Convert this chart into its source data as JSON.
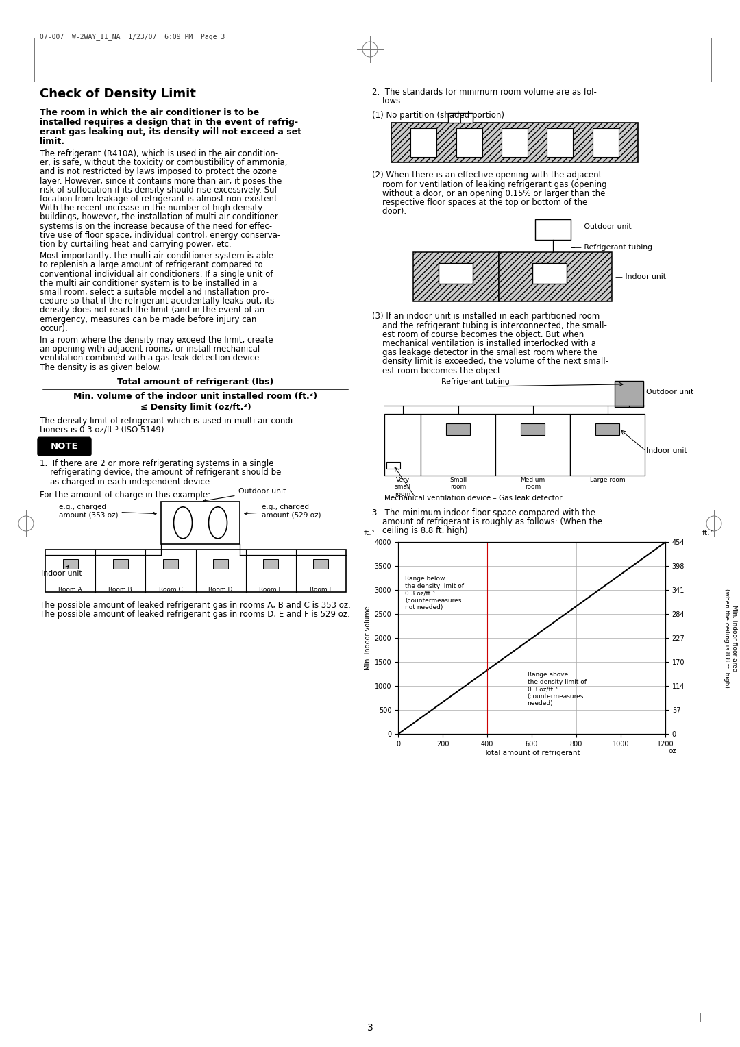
{
  "page_header": "07-007  W-2WAY_II_NA  1/23/07  6:09 PM  Page 3",
  "title": "Check of Density Limit",
  "lines_bold": [
    "The room in which the air conditioner is to be",
    "installed requires a design that in the event of refrig-",
    "erant gas leaking out, its density will not exceed a set",
    "limit."
  ],
  "para1_lines": [
    "The refrigerant (R410A), which is used in the air condition-",
    "er, is safe, without the toxicity or combustibility of ammonia,",
    "and is not restricted by laws imposed to protect the ozone",
    "layer. However, since it contains more than air, it poses the",
    "risk of suffocation if its density should rise excessively. Suf-",
    "focation from leakage of refrigerant is almost non-existent.",
    "With the recent increase in the number of high density",
    "buildings, however, the installation of multi air conditioner",
    "systems is on the increase because of the need for effec-",
    "tive use of floor space, individual control, energy conserva-",
    "tion by curtailing heat and carrying power, etc."
  ],
  "para2_lines": [
    "Most importantly, the multi air conditioner system is able",
    "to replenish a large amount of refrigerant compared to",
    "conventional individual air conditioners. If a single unit of",
    "the multi air conditioner system is to be installed in a",
    "small room, select a suitable model and installation pro-",
    "cedure so that if the refrigerant accidentally leaks out, its",
    "density does not reach the limit (and in the event of an",
    "emergency, measures can be made before injury can",
    "occur)."
  ],
  "para3_lines": [
    "In a room where the density may exceed the limit, create",
    "an opening with adjacent rooms, or install mechanical",
    "ventilation combined with a gas leak detection device.",
    "The density is as given below."
  ],
  "formula_line1": "Total amount of refrigerant (lbs)",
  "formula_line2": "Min. volume of the indoor unit installed room (ft.³)",
  "formula_line3": "≤ Density limit (oz/ft.³)",
  "density_lines": [
    "The density limit of refrigerant which is used in multi air condi-",
    "tioners is 0.3 oz/ft.³ (ISO 5149)."
  ],
  "note_text": "NOTE",
  "note1_lines": [
    "1.  If there are 2 or more refrigerating systems in a single",
    "    refrigerating device, the amount of refrigerant should be",
    "    as charged in each independent device."
  ],
  "charge_para": "For the amount of charge in this example:",
  "room_labels": [
    "Room A",
    "Room B",
    "Room C",
    "Room D",
    "Room E",
    "Room F"
  ],
  "leak_para1": "The possible amount of leaked refrigerant gas in rooms A, B and C is 353 oz.",
  "leak_para2": "The possible amount of leaked refrigerant gas in rooms D, E and F is 529 oz.",
  "right_header_lines": [
    "2.  The standards for minimum room volume are as fol-",
    "    lows."
  ],
  "sub1": "(1) No partition (shaded portion)",
  "sub2_lines": [
    "(2) When there is an effective opening with the adjacent",
    "    room for ventilation of leaking refrigerant gas (opening",
    "    without a door, or an opening 0.15% or larger than the",
    "    respective floor spaces at the top or bottom of the",
    "    door)."
  ],
  "sub3_lines": [
    "(3) If an indoor unit is installed in each partitioned room",
    "    and the refrigerant tubing is interconnected, the small-",
    "    est room of course becomes the object. But when",
    "    mechanical ventilation is installed interlocked with a",
    "    gas leakage detector in the smallest room where the",
    "    density limit is exceeded, the volume of the next small-",
    "    est room becomes the object."
  ],
  "sect3_lines": [
    "3.  The minimum indoor floor space compared with the",
    "    amount of refrigerant is roughly as follows: (When the",
    "    ceiling is 8.8 ft. high)"
  ],
  "page_num": "3",
  "chart_x_ticks": [
    0,
    200,
    400,
    600,
    800,
    1000,
    1200
  ],
  "chart_y_ticks": [
    0,
    500,
    1000,
    1500,
    2000,
    2500,
    3000,
    3500,
    4000
  ],
  "chart_ft2_labels": [
    "0",
    "57",
    "114",
    "170",
    "227",
    "284",
    "341",
    "398",
    "454"
  ],
  "bg_color": "#ffffff"
}
